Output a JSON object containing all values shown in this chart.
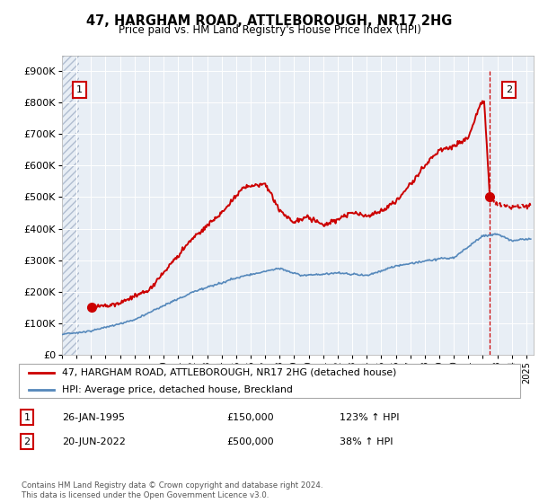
{
  "title": "47, HARGHAM ROAD, ATTLEBOROUGH, NR17 2HG",
  "subtitle": "Price paid vs. HM Land Registry's House Price Index (HPI)",
  "ylim": [
    0,
    950000
  ],
  "yticks": [
    0,
    100000,
    200000,
    300000,
    400000,
    500000,
    600000,
    700000,
    800000,
    900000
  ],
  "ytick_labels": [
    "£0",
    "£100K",
    "£200K",
    "£300K",
    "£400K",
    "£500K",
    "£600K",
    "£700K",
    "£800K",
    "£900K"
  ],
  "price_paid_color": "#cc0000",
  "hpi_line_color": "#5588bb",
  "background_color": "#ffffff",
  "plot_bg_color": "#e8eef5",
  "grid_color": "#ffffff",
  "legend_label_price": "47, HARGHAM ROAD, ATTLEBOROUGH, NR17 2HG (detached house)",
  "legend_label_hpi": "HPI: Average price, detached house, Breckland",
  "annotation1_date": "26-JAN-1995",
  "annotation1_price": "£150,000",
  "annotation1_hpi": "123% ↑ HPI",
  "annotation2_date": "20-JUN-2022",
  "annotation2_price": "£500,000",
  "annotation2_hpi": "38% ↑ HPI",
  "point1_x": 1995.07,
  "point1_y": 150000,
  "point2_x": 2022.47,
  "point2_y": 500000,
  "copyright_text": "Contains HM Land Registry data © Crown copyright and database right 2024.\nThis data is licensed under the Open Government Licence v3.0.",
  "xmin": 1993.0,
  "xmax": 2025.5
}
